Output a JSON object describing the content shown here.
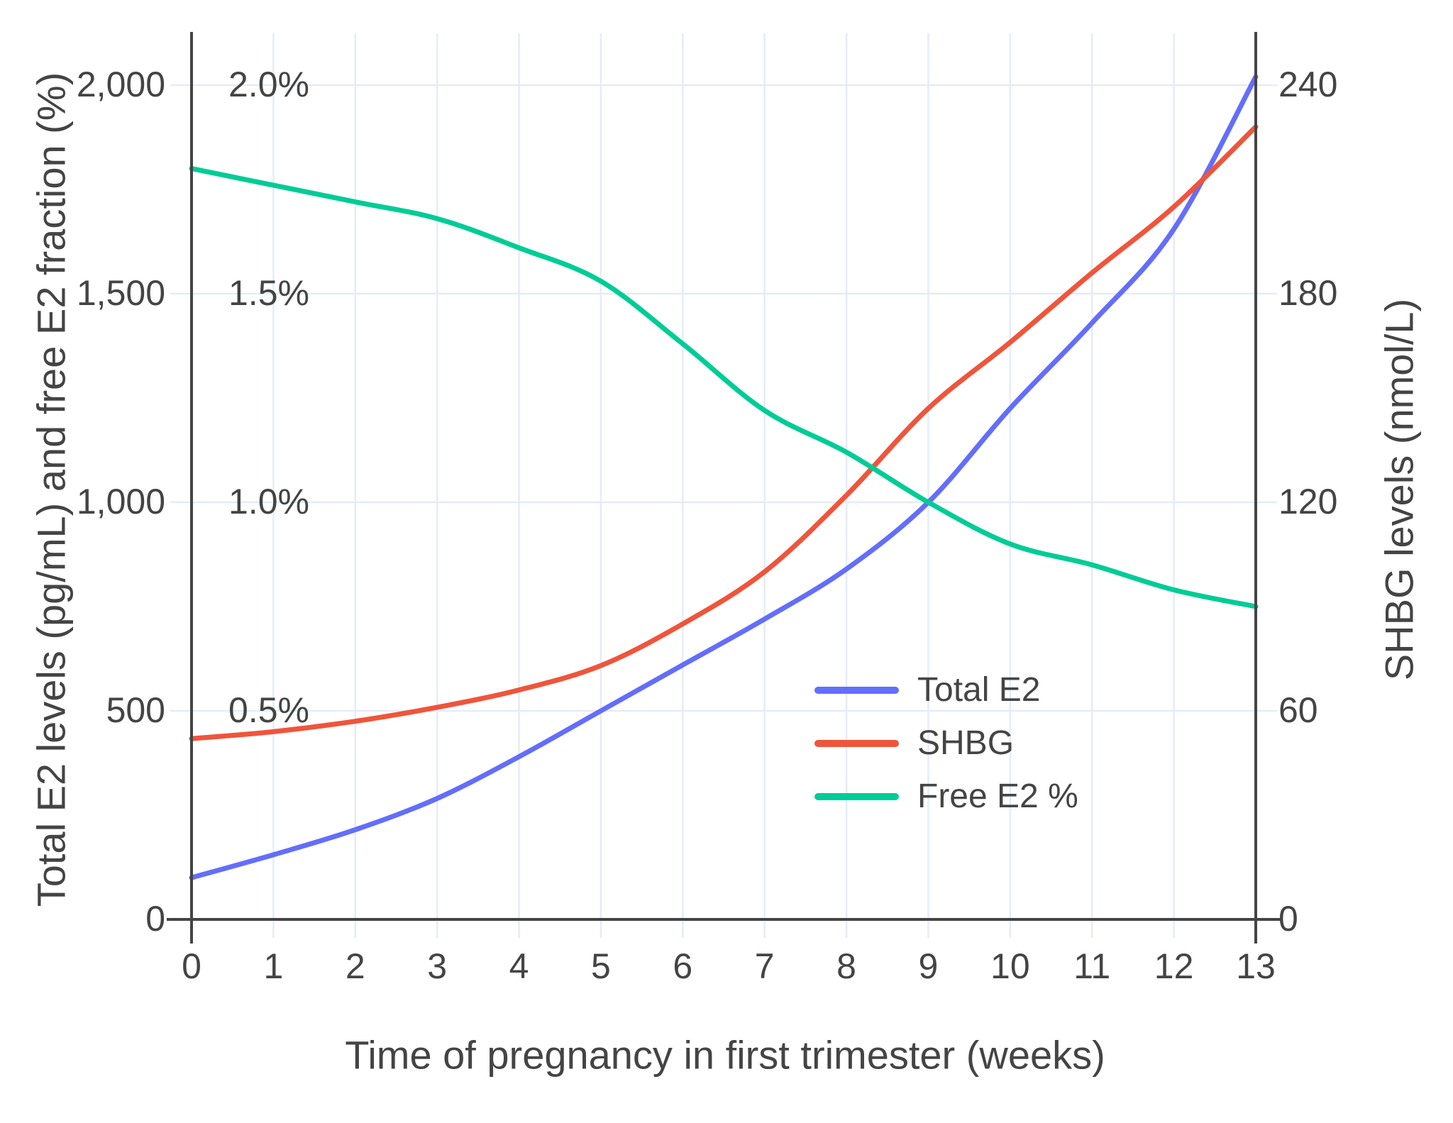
{
  "chart_data": {
    "type": "line",
    "xlabel": "Time of pregnancy in first trimester (weeks)",
    "ylabel_left": "Total E2 levels (pg/mL) and free E2 fraction (%)",
    "ylabel_right": "SHBG levels (nmol/L)",
    "x": [
      0,
      1,
      2,
      3,
      4,
      5,
      6,
      7,
      8,
      9,
      10,
      11,
      12,
      13
    ],
    "series": [
      {
        "name": "Total E2",
        "axis": "left",
        "color": "#636EFA",
        "values": [
          100,
          155,
          215,
          290,
          390,
          500,
          610,
          720,
          840,
          1000,
          1225,
          1430,
          1655,
          2020
        ]
      },
      {
        "name": "SHBG",
        "axis": "right",
        "color": "#EF553B",
        "values": [
          52,
          54,
          57,
          61,
          66,
          73,
          85,
          100,
          122,
          147,
          166,
          186,
          205,
          228
        ]
      },
      {
        "name": "Free E2 %",
        "axis": "left_percent",
        "color": "#00CC96",
        "values": [
          1.8,
          1.76,
          1.72,
          1.68,
          1.61,
          1.53,
          1.38,
          1.22,
          1.12,
          1.0,
          0.9,
          0.85,
          0.79,
          0.75
        ]
      }
    ],
    "left_ticks": [
      "0",
      "500",
      "1,000",
      "1,500",
      "2,000"
    ],
    "percent_ticks": [
      "0.5%",
      "1.0%",
      "1.5%",
      "2.0%"
    ],
    "right_ticks": [
      "0",
      "60",
      "120",
      "180",
      "240"
    ],
    "x_ticks": [
      "0",
      "1",
      "2",
      "3",
      "4",
      "5",
      "6",
      "7",
      "8",
      "9",
      "10",
      "11",
      "12",
      "13"
    ],
    "ylim_left": [
      0,
      2000
    ],
    "ylim_right": [
      0,
      240
    ],
    "percent_per_left_unit": 0.001,
    "grid": true,
    "legend_position": "center-right",
    "colors": {
      "total_e2": "#636EFA",
      "shbg": "#EF553B",
      "free_e2_pct": "#00CC96",
      "axis_line": "#444444",
      "grid_line": "#E5ECF6",
      "text": "#444444",
      "background": "#FFFFFF"
    }
  }
}
